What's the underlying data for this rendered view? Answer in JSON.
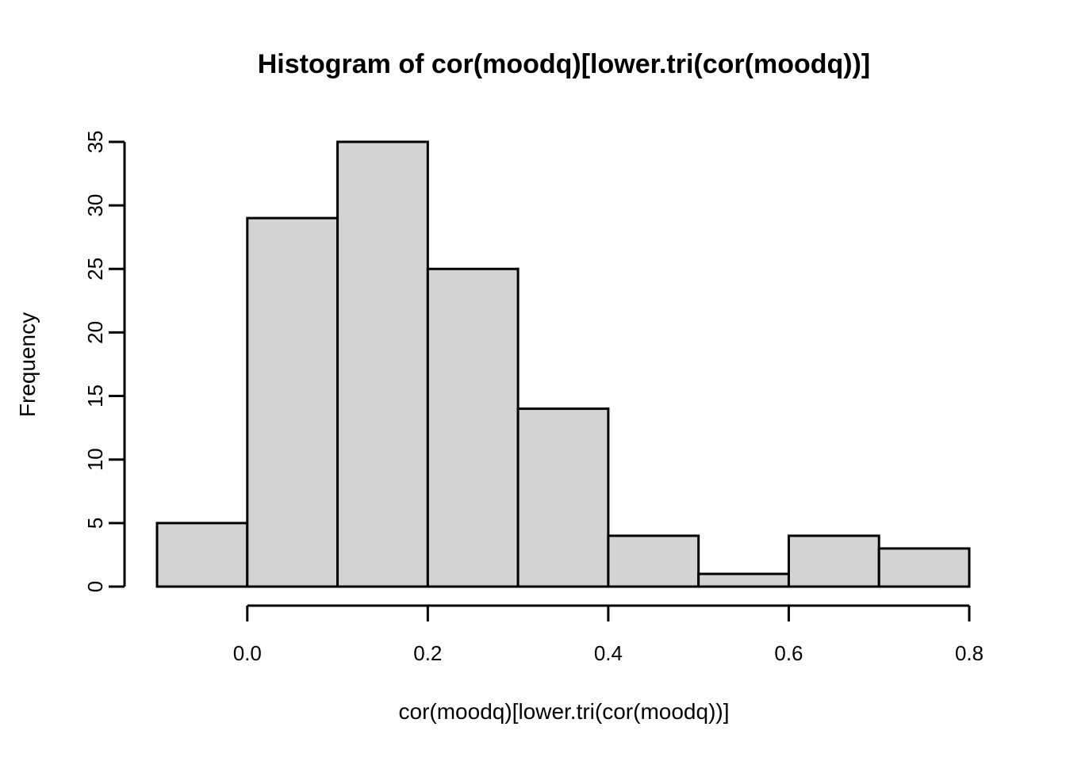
{
  "chart_data": {
    "type": "bar",
    "subtype": "histogram",
    "title": "Histogram of cor(moodq)[lower.tri(cor(moodq))]",
    "xlabel": "cor(moodq)[lower.tri(cor(moodq))]",
    "ylabel": "Frequency",
    "breaks": [
      -0.1,
      0.0,
      0.1,
      0.2,
      0.3,
      0.4,
      0.5,
      0.6,
      0.7,
      0.8
    ],
    "counts": [
      5,
      29,
      35,
      25,
      14,
      4,
      1,
      4,
      3
    ],
    "x_ticks": [
      {
        "value": 0.0,
        "label": "0.0"
      },
      {
        "value": 0.2,
        "label": "0.2"
      },
      {
        "value": 0.4,
        "label": "0.4"
      },
      {
        "value": 0.6,
        "label": "0.6"
      },
      {
        "value": 0.8,
        "label": "0.8"
      }
    ],
    "y_ticks": [
      {
        "value": 0,
        "label": "0"
      },
      {
        "value": 5,
        "label": "5"
      },
      {
        "value": 10,
        "label": "10"
      },
      {
        "value": 15,
        "label": "15"
      },
      {
        "value": 20,
        "label": "20"
      },
      {
        "value": 25,
        "label": "25"
      },
      {
        "value": 30,
        "label": "30"
      },
      {
        "value": 35,
        "label": "35"
      }
    ],
    "xlim": [
      -0.1,
      0.8
    ],
    "ylim": [
      0,
      35
    ],
    "grid": false,
    "legend": "none",
    "bar_fill": "#d3d3d3",
    "bar_stroke": "#000000",
    "axis_color": "#000000",
    "text_color": "#000000",
    "background": "#ffffff"
  }
}
